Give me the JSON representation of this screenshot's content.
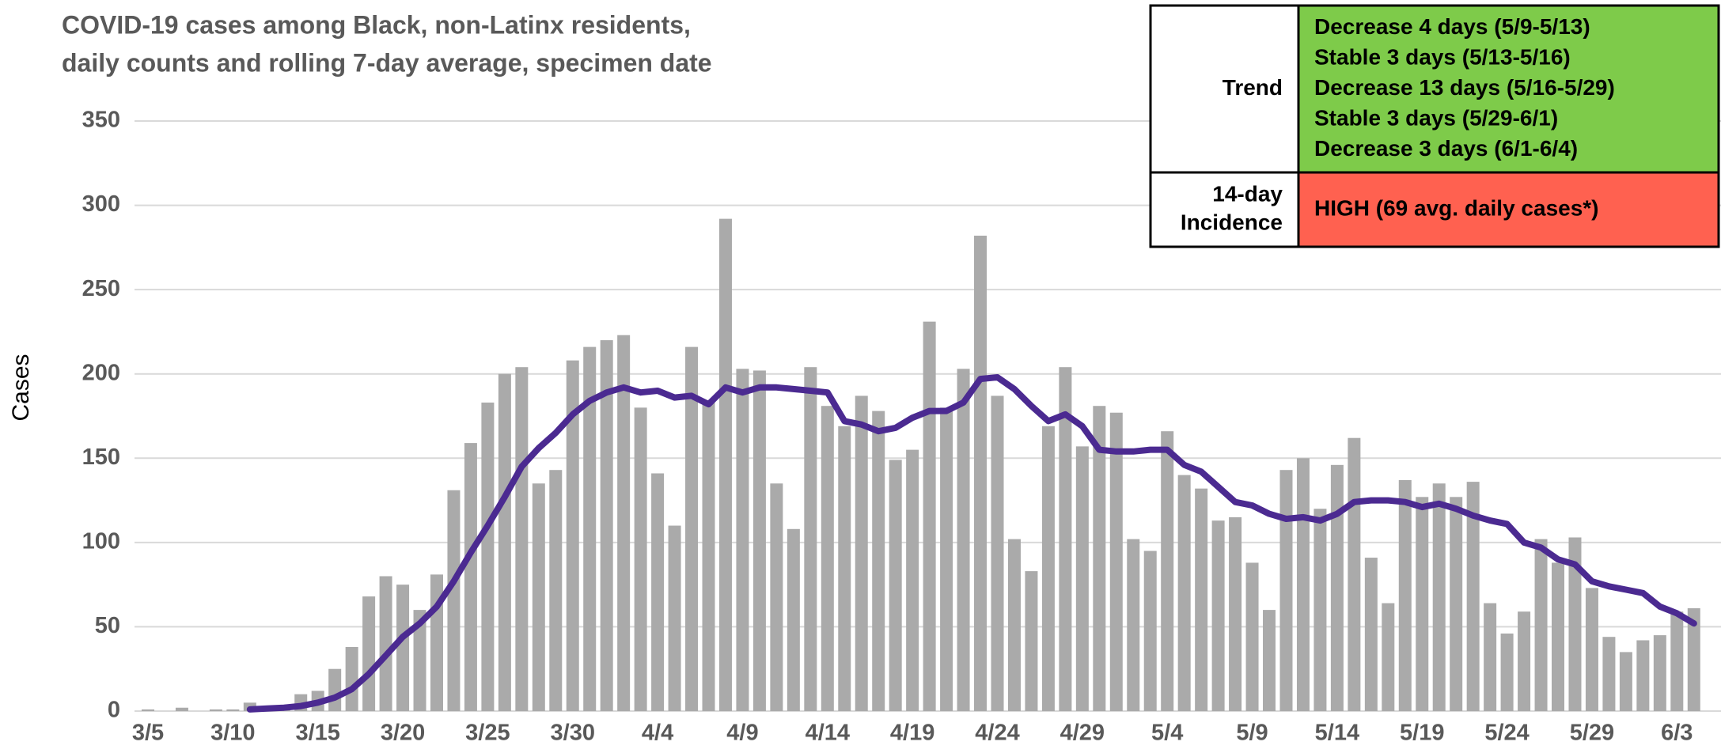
{
  "chart_data": {
    "type": "bar",
    "title": [
      "COVID-19 cases among Black, non-Latinx residents,",
      "daily counts and rolling 7-day average, specimen date"
    ],
    "y_label": "Cases",
    "categories": [
      "3/5",
      null,
      null,
      null,
      null,
      "3/10",
      null,
      null,
      null,
      null,
      "3/15",
      null,
      null,
      null,
      null,
      "3/20",
      null,
      null,
      null,
      null,
      "3/25",
      null,
      null,
      null,
      null,
      "3/30",
      null,
      null,
      null,
      null,
      "4/4",
      null,
      null,
      null,
      null,
      "4/9",
      null,
      null,
      null,
      null,
      "4/14",
      null,
      null,
      null,
      null,
      "4/19",
      null,
      null,
      null,
      null,
      "4/24",
      null,
      null,
      null,
      null,
      "4/29",
      null,
      null,
      null,
      null,
      "5/4",
      null,
      null,
      null,
      null,
      "5/9",
      null,
      null,
      null,
      null,
      "5/14",
      null,
      null,
      null,
      null,
      "5/19",
      null,
      null,
      null,
      null,
      "5/24",
      null,
      null,
      null,
      null,
      "5/29",
      null,
      null,
      null,
      null,
      "6/3",
      null
    ],
    "series": [
      {
        "type": "bar",
        "color": "#aaaaaa",
        "values": [
          1,
          0,
          2,
          0,
          1,
          1,
          5,
          0,
          1,
          10,
          12,
          25,
          38,
          68,
          80,
          75,
          60,
          81,
          131,
          159,
          183,
          200,
          204,
          135,
          143,
          208,
          216,
          220,
          223,
          180,
          141,
          110,
          216,
          183,
          292,
          203,
          202,
          135,
          108,
          204,
          181,
          169,
          187,
          178,
          149,
          155,
          231,
          180,
          203,
          282,
          187,
          102,
          83,
          169,
          204,
          157,
          181,
          177,
          102,
          95,
          166,
          140,
          132,
          113,
          115,
          88,
          60,
          143,
          150,
          120,
          146,
          162,
          91,
          64,
          137,
          127,
          135,
          127,
          136,
          64,
          46,
          59,
          102,
          88,
          103,
          73,
          44,
          35,
          42,
          45,
          59,
          61
        ]
      },
      {
        "type": "line",
        "color": "#4b2a91",
        "values": [
          null,
          null,
          null,
          null,
          null,
          null,
          1,
          1.5,
          2,
          3,
          5,
          8,
          13,
          22,
          33,
          44,
          52,
          62,
          77,
          94,
          110,
          127,
          145,
          156,
          165,
          176,
          184,
          189,
          192,
          189,
          190,
          186,
          187,
          182,
          192,
          189,
          192,
          192,
          191,
          190,
          189,
          172,
          170,
          166,
          168,
          174,
          178,
          178,
          183,
          197,
          198,
          191,
          181,
          172,
          176,
          169,
          155,
          154,
          154,
          155,
          155,
          146,
          142,
          133,
          124,
          122,
          117,
          114,
          115,
          113,
          117,
          124,
          125,
          125,
          124,
          121,
          123,
          120,
          116,
          113,
          111,
          100,
          97,
          90,
          87,
          77,
          74,
          72,
          70,
          62,
          58,
          52
        ]
      }
    ],
    "ylim": [
      0,
      350
    ],
    "yticks": [
      0,
      50,
      100,
      150,
      200,
      250,
      300,
      350
    ],
    "grid": true
  },
  "table": {
    "rows": [
      {
        "label": "Trend",
        "color": "#7ecb4a",
        "lines": [
          "Decrease 4 days (5/9-5/13)",
          "Stable 3 days (5/13-5/16)",
          "Decrease 13 days (5/16-5/29)",
          "Stable 3 days (5/29-6/1)",
          "Decrease 3 days (6/1-6/4)"
        ]
      },
      {
        "label": [
          "14-day",
          "Incidence"
        ],
        "color": "#ff6150",
        "lines": [
          "HIGH (69 avg. daily cases*)"
        ]
      }
    ]
  }
}
